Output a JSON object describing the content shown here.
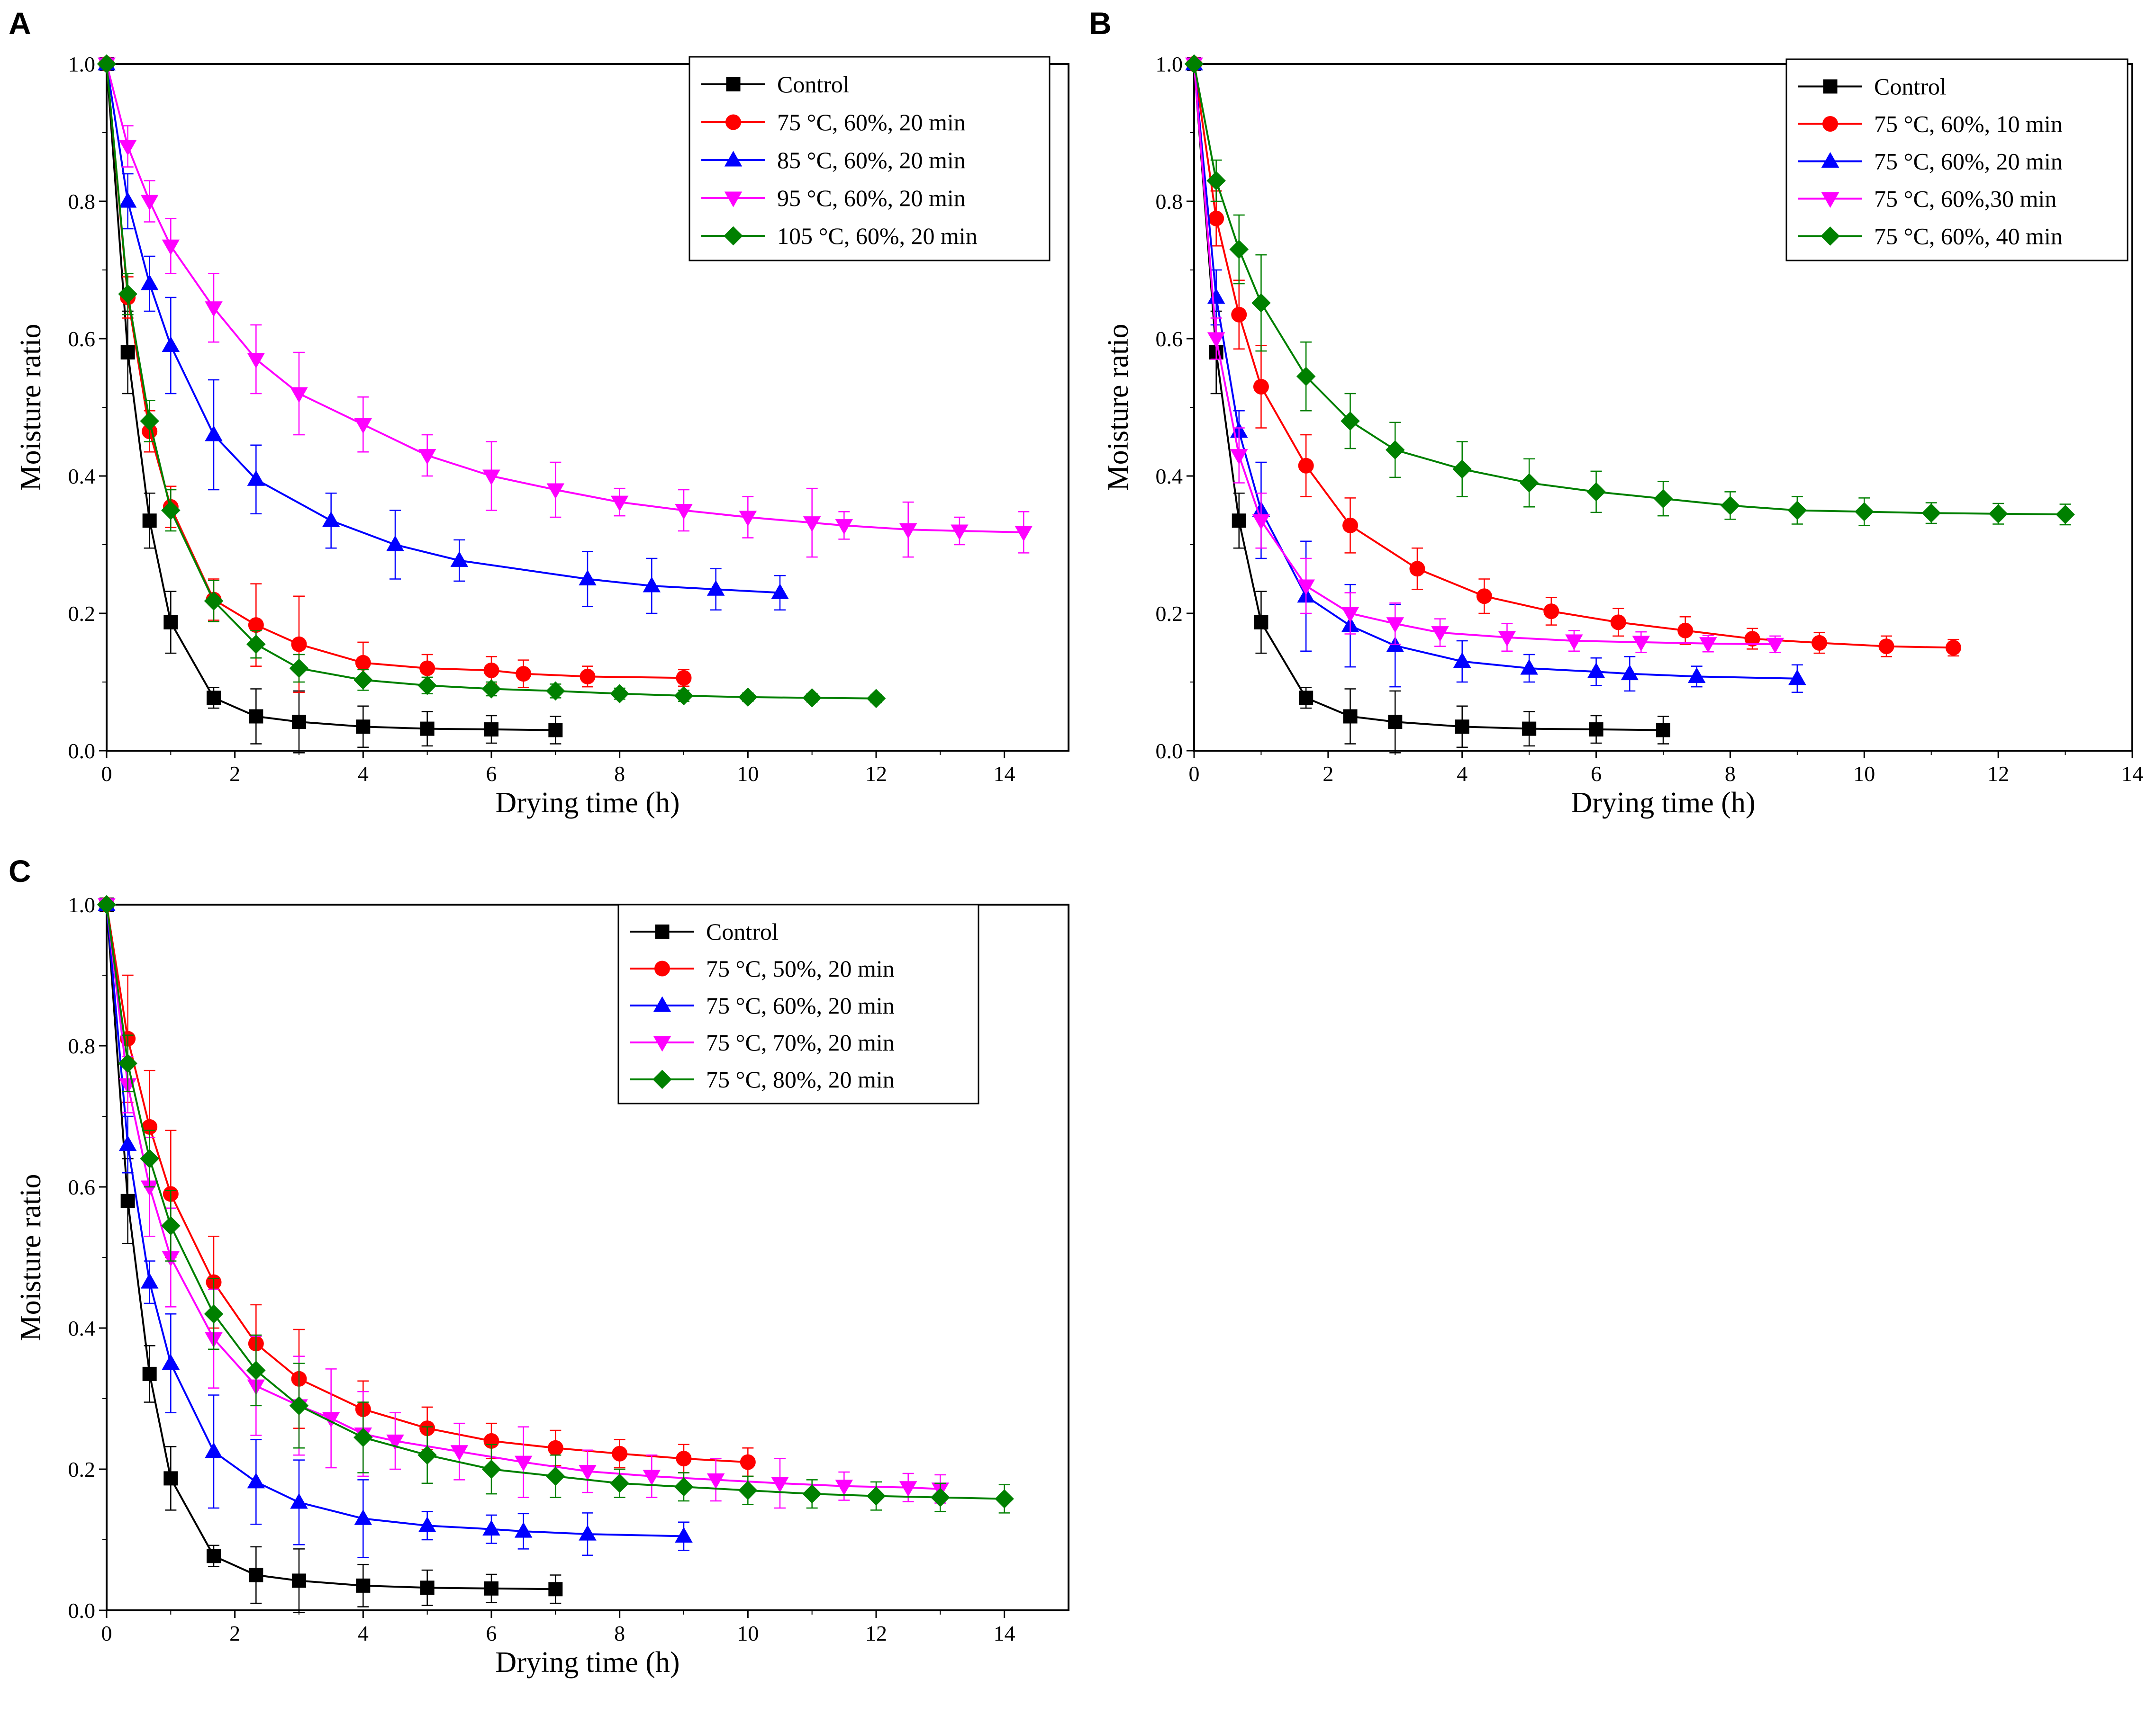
{
  "colors": {
    "control": "#000000",
    "red": "#ff0000",
    "blue": "#0000ff",
    "magenta": "#ff00ff",
    "green": "#008000"
  },
  "chart_data": [
    {
      "panel": "A",
      "type": "line",
      "xlabel": "Drying time (h)",
      "ylabel": "Moisture ratio",
      "xlim": [
        0,
        15
      ],
      "ylim": [
        0,
        1.0
      ],
      "xticks": [
        0,
        2,
        4,
        6,
        8,
        10,
        12,
        14
      ],
      "yticks": [
        0.0,
        0.2,
        0.4,
        0.6,
        0.8,
        1.0
      ],
      "legend_position": "top-right",
      "series": [
        {
          "name": "Control",
          "color": "#000000",
          "marker": "square",
          "x": [
            0,
            0.33,
            0.67,
            1,
            1.67,
            2.33,
            3,
            4,
            5,
            6,
            7
          ],
          "y": [
            1.0,
            0.58,
            0.335,
            0.187,
            0.077,
            0.05,
            0.042,
            0.035,
            0.032,
            0.031,
            0.03
          ],
          "err": [
            0,
            0.06,
            0.04,
            0.045,
            0.015,
            0.04,
            0.045,
            0.03,
            0.025,
            0.02,
            0.02
          ]
        },
        {
          "name": "75 °C, 60%, 20 min",
          "color": "#ff0000",
          "marker": "circle",
          "x": [
            0,
            0.33,
            0.67,
            1,
            1.67,
            2.33,
            3,
            4,
            5,
            6,
            6.5,
            7.5,
            9
          ],
          "y": [
            1.0,
            0.66,
            0.465,
            0.355,
            0.22,
            0.183,
            0.155,
            0.128,
            0.12,
            0.117,
            0.112,
            0.108,
            0.106
          ],
          "err": [
            0,
            0.03,
            0.03,
            0.03,
            0.03,
            0.06,
            0.07,
            0.03,
            0.02,
            0.02,
            0.02,
            0.015,
            0.012
          ]
        },
        {
          "name": "85 °C, 60%, 20 min",
          "color": "#0000ff",
          "marker": "triangle-up",
          "x": [
            0,
            0.33,
            0.67,
            1,
            1.67,
            2.33,
            3.5,
            4.5,
            5.5,
            7.5,
            8.5,
            9.5,
            10.5
          ],
          "y": [
            1.0,
            0.8,
            0.68,
            0.59,
            0.46,
            0.395,
            0.335,
            0.3,
            0.277,
            0.25,
            0.24,
            0.235,
            0.23
          ],
          "err": [
            0,
            0.04,
            0.04,
            0.07,
            0.08,
            0.05,
            0.04,
            0.05,
            0.03,
            0.04,
            0.04,
            0.03,
            0.025
          ]
        },
        {
          "name": "95 °C, 60%, 20 min",
          "color": "#ff00ff",
          "marker": "triangle-down",
          "x": [
            0,
            0.33,
            0.67,
            1,
            1.67,
            2.33,
            3,
            4,
            5,
            6,
            7,
            8,
            9,
            10,
            11,
            11.5,
            12.5,
            13.3,
            14.3
          ],
          "y": [
            1.0,
            0.88,
            0.8,
            0.735,
            0.645,
            0.57,
            0.52,
            0.475,
            0.43,
            0.4,
            0.38,
            0.362,
            0.35,
            0.34,
            0.332,
            0.328,
            0.322,
            0.32,
            0.318
          ],
          "err": [
            0,
            0.03,
            0.03,
            0.04,
            0.05,
            0.05,
            0.06,
            0.04,
            0.03,
            0.05,
            0.04,
            0.02,
            0.03,
            0.03,
            0.05,
            0.02,
            0.04,
            0.02,
            0.03
          ]
        },
        {
          "name": "105 °C, 60%, 20 min",
          "color": "#008000",
          "marker": "diamond",
          "x": [
            0,
            0.33,
            0.67,
            1,
            1.67,
            2.33,
            3,
            4,
            5,
            6,
            7,
            8,
            9,
            10,
            11,
            12
          ],
          "y": [
            1.0,
            0.665,
            0.48,
            0.35,
            0.218,
            0.155,
            0.12,
            0.103,
            0.095,
            0.09,
            0.087,
            0.083,
            0.08,
            0.078,
            0.077,
            0.076
          ],
          "err": [
            0,
            0.03,
            0.03,
            0.03,
            0.03,
            0.02,
            0.02,
            0.015,
            0.012,
            0.01,
            0.01,
            0.008,
            0.008,
            0.006,
            0.006,
            0.006
          ]
        }
      ]
    },
    {
      "panel": "B",
      "type": "line",
      "xlabel": "Drying time (h)",
      "ylabel": "Moisture ratio",
      "xlim": [
        0,
        14
      ],
      "ylim": [
        0,
        1.0
      ],
      "xticks": [
        0,
        2,
        4,
        6,
        8,
        10,
        12,
        14
      ],
      "yticks": [
        0.0,
        0.2,
        0.4,
        0.6,
        0.8,
        1.0
      ],
      "legend_position": "top-right",
      "series": [
        {
          "name": "Control",
          "color": "#000000",
          "marker": "square",
          "x": [
            0,
            0.33,
            0.67,
            1,
            1.67,
            2.33,
            3,
            4,
            5,
            6,
            7
          ],
          "y": [
            1.0,
            0.58,
            0.335,
            0.187,
            0.077,
            0.05,
            0.042,
            0.035,
            0.032,
            0.031,
            0.03
          ],
          "err": [
            0,
            0.06,
            0.04,
            0.045,
            0.015,
            0.04,
            0.045,
            0.03,
            0.025,
            0.02,
            0.02
          ]
        },
        {
          "name": "75 °C, 60%, 10 min",
          "color": "#ff0000",
          "marker": "circle",
          "x": [
            0,
            0.33,
            0.67,
            1,
            1.67,
            2.33,
            3.33,
            4.33,
            5.33,
            6.33,
            7.33,
            8.33,
            9.33,
            10.33,
            11.33
          ],
          "y": [
            1.0,
            0.775,
            0.635,
            0.53,
            0.415,
            0.328,
            0.265,
            0.225,
            0.203,
            0.187,
            0.175,
            0.163,
            0.157,
            0.152,
            0.15
          ],
          "err": [
            0,
            0.04,
            0.05,
            0.06,
            0.045,
            0.04,
            0.03,
            0.025,
            0.02,
            0.02,
            0.02,
            0.015,
            0.015,
            0.015,
            0.012
          ]
        },
        {
          "name": "75 °C, 60%, 20 min",
          "color": "#0000ff",
          "marker": "triangle-up",
          "x": [
            0,
            0.33,
            0.67,
            1,
            1.67,
            2.33,
            3,
            4,
            5,
            6,
            6.5,
            7.5,
            9
          ],
          "y": [
            1.0,
            0.66,
            0.465,
            0.35,
            0.225,
            0.182,
            0.153,
            0.13,
            0.12,
            0.115,
            0.112,
            0.108,
            0.105
          ],
          "err": [
            0,
            0.04,
            0.03,
            0.07,
            0.08,
            0.06,
            0.06,
            0.03,
            0.02,
            0.02,
            0.025,
            0.015,
            0.02
          ]
        },
        {
          "name": "75 °C, 60%,30 min",
          "color": "#ff00ff",
          "marker": "triangle-down",
          "x": [
            0,
            0.33,
            0.67,
            1,
            1.67,
            2.33,
            3,
            3.67,
            4.67,
            5.67,
            6.67,
            7.67,
            8.67
          ],
          "y": [
            1.0,
            0.6,
            0.43,
            0.335,
            0.24,
            0.2,
            0.185,
            0.172,
            0.165,
            0.16,
            0.158,
            0.156,
            0.155
          ],
          "err": [
            0,
            0.03,
            0.04,
            0.04,
            0.04,
            0.03,
            0.03,
            0.02,
            0.02,
            0.015,
            0.015,
            0.012,
            0.012
          ]
        },
        {
          "name": "75 °C, 60%, 40 min",
          "color": "#008000",
          "marker": "diamond",
          "x": [
            0,
            0.33,
            0.67,
            1,
            1.67,
            2.33,
            3,
            4,
            5,
            6,
            7,
            8,
            9,
            10,
            11,
            12,
            13
          ],
          "y": [
            1.0,
            0.83,
            0.73,
            0.652,
            0.545,
            0.48,
            0.438,
            0.41,
            0.39,
            0.377,
            0.367,
            0.357,
            0.35,
            0.348,
            0.346,
            0.345,
            0.344
          ],
          "err": [
            0,
            0.03,
            0.05,
            0.07,
            0.05,
            0.04,
            0.04,
            0.04,
            0.035,
            0.03,
            0.025,
            0.02,
            0.02,
            0.02,
            0.015,
            0.015,
            0.015
          ]
        }
      ]
    },
    {
      "panel": "C",
      "type": "line",
      "xlabel": "Drying time (h)",
      "ylabel": "Moisture ratio",
      "xlim": [
        0,
        15
      ],
      "ylim": [
        0,
        1.0
      ],
      "xticks": [
        0,
        2,
        4,
        6,
        8,
        10,
        12,
        14
      ],
      "yticks": [
        0.0,
        0.2,
        0.4,
        0.6,
        0.8,
        1.0
      ],
      "legend_position": "top-right",
      "series": [
        {
          "name": "Control",
          "color": "#000000",
          "marker": "square",
          "x": [
            0,
            0.33,
            0.67,
            1,
            1.67,
            2.33,
            3,
            4,
            5,
            6,
            7
          ],
          "y": [
            1.0,
            0.58,
            0.335,
            0.187,
            0.077,
            0.05,
            0.042,
            0.035,
            0.032,
            0.031,
            0.03
          ],
          "err": [
            0,
            0.06,
            0.04,
            0.045,
            0.015,
            0.04,
            0.045,
            0.03,
            0.025,
            0.02,
            0.02
          ]
        },
        {
          "name": "75 °C, 50%, 20 min",
          "color": "#ff0000",
          "marker": "circle",
          "x": [
            0,
            0.33,
            0.67,
            1,
            1.67,
            2.33,
            3,
            4,
            5,
            6,
            7,
            8,
            9,
            10
          ],
          "y": [
            1.0,
            0.81,
            0.685,
            0.59,
            0.465,
            0.378,
            0.328,
            0.285,
            0.258,
            0.24,
            0.23,
            0.222,
            0.215,
            0.21
          ],
          "err": [
            0,
            0.09,
            0.08,
            0.09,
            0.065,
            0.055,
            0.07,
            0.04,
            0.03,
            0.025,
            0.025,
            0.02,
            0.02,
            0.02
          ]
        },
        {
          "name": "75 °C, 60%, 20 min",
          "color": "#0000ff",
          "marker": "triangle-up",
          "x": [
            0,
            0.33,
            0.67,
            1,
            1.67,
            2.33,
            3,
            4,
            5,
            6,
            6.5,
            7.5,
            9
          ],
          "y": [
            1.0,
            0.66,
            0.465,
            0.35,
            0.225,
            0.182,
            0.153,
            0.13,
            0.12,
            0.115,
            0.112,
            0.108,
            0.105
          ],
          "err": [
            0,
            0.04,
            0.03,
            0.07,
            0.08,
            0.06,
            0.06,
            0.055,
            0.02,
            0.02,
            0.025,
            0.03,
            0.02
          ]
        },
        {
          "name": "75 °C, 70%, 20 min",
          "color": "#ff00ff",
          "marker": "triangle-down",
          "x": [
            0,
            0.33,
            0.67,
            1,
            1.67,
            2.33,
            3,
            3.5,
            4,
            4.5,
            5.5,
            6.5,
            7.5,
            8.5,
            9.5,
            10.5,
            11.5,
            12.5,
            13
          ],
          "y": [
            1.0,
            0.745,
            0.6,
            0.5,
            0.385,
            0.318,
            0.29,
            0.272,
            0.25,
            0.24,
            0.225,
            0.21,
            0.197,
            0.19,
            0.185,
            0.18,
            0.176,
            0.174,
            0.172
          ],
          "err": [
            0,
            0.04,
            0.07,
            0.07,
            0.07,
            0.07,
            0.07,
            0.07,
            0.06,
            0.04,
            0.04,
            0.05,
            0.03,
            0.03,
            0.03,
            0.035,
            0.02,
            0.02,
            0.02
          ]
        },
        {
          "name": "75 °C, 80%, 20 min",
          "color": "#008000",
          "marker": "diamond",
          "x": [
            0,
            0.33,
            0.67,
            1,
            1.67,
            2.33,
            3,
            4,
            5,
            6,
            7,
            8,
            9,
            10,
            11,
            12,
            13,
            14
          ],
          "y": [
            1.0,
            0.775,
            0.64,
            0.545,
            0.42,
            0.34,
            0.29,
            0.245,
            0.22,
            0.2,
            0.19,
            0.18,
            0.175,
            0.17,
            0.165,
            0.162,
            0.16,
            0.158
          ],
          "err": [
            0,
            0.04,
            0.04,
            0.05,
            0.05,
            0.05,
            0.06,
            0.05,
            0.04,
            0.035,
            0.03,
            0.02,
            0.02,
            0.02,
            0.02,
            0.02,
            0.02,
            0.02
          ]
        }
      ]
    }
  ]
}
